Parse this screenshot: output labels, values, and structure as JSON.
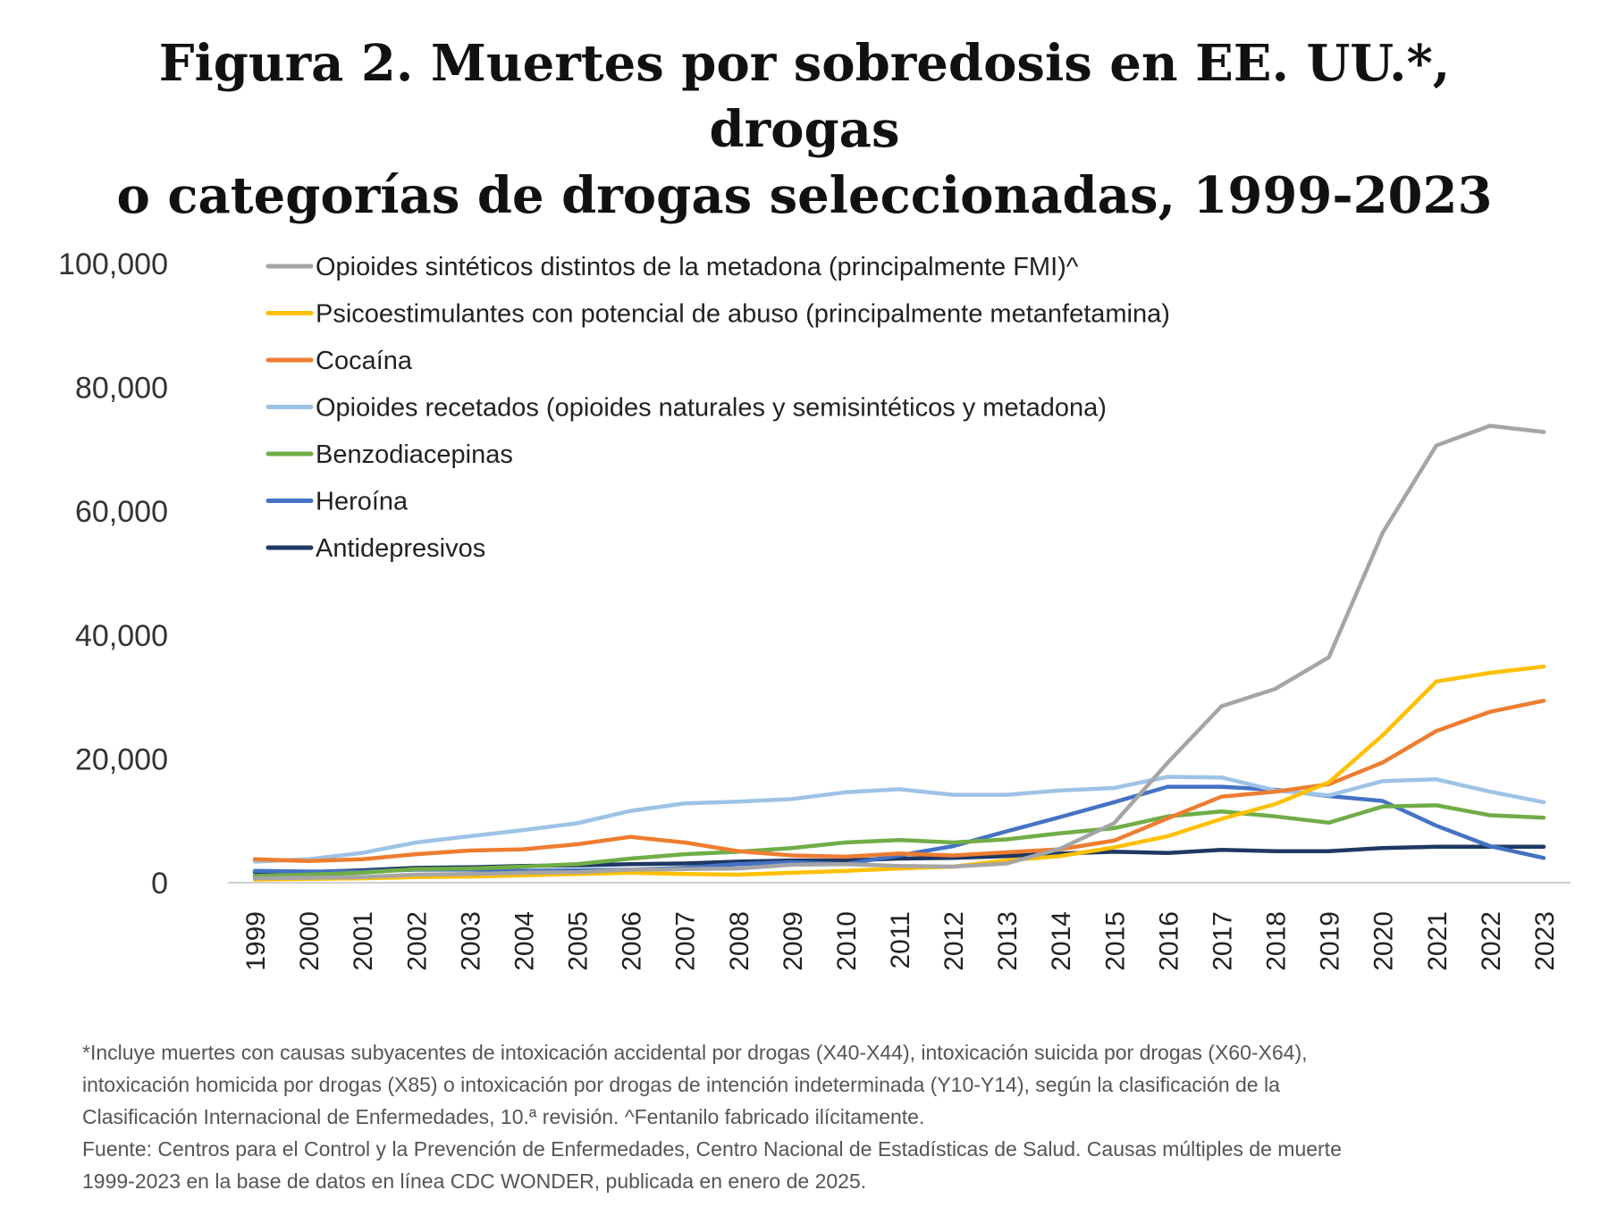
{
  "title_lines": [
    "Figura 2. Muertes por sobredosis en EE. UU.*, drogas",
    "o categorías de drogas seleccionadas, 1999-2023"
  ],
  "chart_data": {
    "type": "line",
    "x": [
      "1999",
      "2000",
      "2001",
      "2002",
      "2003",
      "2004",
      "2005",
      "2006",
      "2007",
      "2008",
      "2009",
      "2010",
      "2011",
      "2012",
      "2013",
      "2014",
      "2015",
      "2016",
      "2017",
      "2018",
      "2019",
      "2020",
      "2021",
      "2022",
      "2023"
    ],
    "ylim": [
      0,
      100000
    ],
    "yticks": [
      0,
      20000,
      40000,
      60000,
      80000,
      100000
    ],
    "ytick_labels": [
      "0",
      "20,000",
      "40,000",
      "60,000",
      "80,000",
      "100,000"
    ],
    "grid": false,
    "legend_position": "top-left",
    "series": [
      {
        "name": "Opioides sintéticos distintos de la metadona (principalmente FMI)^",
        "color": "#a5a5a5",
        "values": [
          700,
          800,
          900,
          1300,
          1400,
          1600,
          1700,
          2100,
          2200,
          2300,
          2900,
          3000,
          2700,
          2600,
          3100,
          5500,
          9600,
          19400,
          28500,
          31300,
          36400,
          56500,
          70600,
          73800,
          72800
        ]
      },
      {
        "name": "Psicoestimulantes con potencial de abuso (principalmente metanfetamina)",
        "color": "#ffc000",
        "values": [
          500,
          600,
          700,
          900,
          1000,
          1200,
          1400,
          1600,
          1400,
          1300,
          1600,
          1900,
          2300,
          2600,
          3600,
          4300,
          5700,
          7500,
          10300,
          12700,
          16200,
          23800,
          32500,
          33900,
          34900
        ]
      },
      {
        "name": "Cocaína",
        "color": "#ed7d31",
        "values": [
          3800,
          3500,
          3800,
          4600,
          5200,
          5400,
          6200,
          7400,
          6500,
          5100,
          4400,
          4200,
          4700,
          4400,
          4900,
          5400,
          6800,
          10400,
          13900,
          14700,
          15900,
          19400,
          24500,
          27600,
          29400
        ]
      },
      {
        "name": "Opioides recetados (opioides naturales y semisintéticos y metadona)",
        "color": "#9dc3e6",
        "values": [
          3400,
          3800,
          4800,
          6500,
          7500,
          8500,
          9600,
          11600,
          12800,
          13100,
          13500,
          14600,
          15100,
          14200,
          14200,
          14900,
          15300,
          17100,
          17000,
          14900,
          14100,
          16400,
          16700,
          14700,
          13000
        ]
      },
      {
        "name": "Benzodiacepinas",
        "color": "#70ad47",
        "values": [
          1100,
          1300,
          1600,
          2200,
          2300,
          2600,
          3000,
          3900,
          4600,
          5000,
          5600,
          6500,
          6900,
          6500,
          7000,
          8000,
          8800,
          10700,
          11500,
          10700,
          9700,
          12300,
          12500,
          10900,
          10500
        ]
      },
      {
        "name": "Heroína",
        "color": "#4472c4",
        "values": [
          1900,
          1800,
          1800,
          2100,
          2100,
          1900,
          2000,
          2100,
          2400,
          3000,
          3300,
          3000,
          4400,
          5900,
          8300,
          10600,
          13000,
          15500,
          15500,
          15000,
          14000,
          13200,
          9200,
          5900,
          4000
        ]
      },
      {
        "name": "Antidepresivos",
        "color": "#1f3864",
        "values": [
          1700,
          1700,
          2000,
          2400,
          2500,
          2700,
          2800,
          3000,
          3100,
          3400,
          3600,
          3600,
          3900,
          4000,
          4300,
          4700,
          5000,
          4800,
          5300,
          5100,
          5100,
          5600,
          5800,
          5800,
          5800
        ]
      }
    ]
  },
  "footnote": {
    "line1": "*Incluye muertes con causas subyacentes de intoxicación accidental por drogas (X40-X44), intoxicación suicida por drogas (X60-X64),",
    "line2": "intoxicación homicida por drogas (X85) o intoxicación por drogas de intención indeterminada (Y10-Y14), según la clasificación de la",
    "line3": "Clasificación Internacional de Enfermedades, 10.ª revisión. ^Fentanilo fabricado ilícitamente.",
    "line4": "Fuente: Centros para el Control y la Prevención de Enfermedades, Centro Nacional de Estadísticas de Salud. Causas múltiples de muerte",
    "line5": "1999-2023 en la base de datos en línea CDC WONDER, publicada en enero de 2025."
  }
}
